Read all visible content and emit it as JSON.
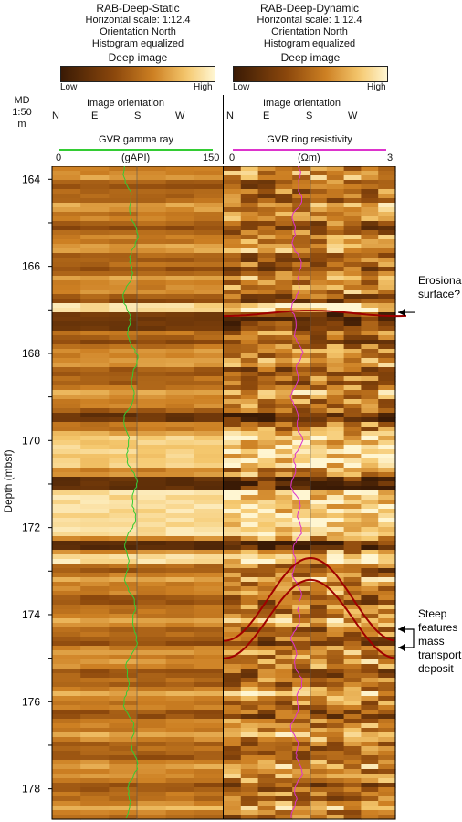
{
  "left_track": {
    "title": "RAB-Deep-Static",
    "scale": "Horizontal scale: 1:12.4",
    "orientation": "Orientation North",
    "processing": "Histogram equalized",
    "colorbar_title": "Deep image",
    "colorbar_low": "Low",
    "colorbar_high": "High",
    "orientation_header": "Image orientation",
    "compass": [
      "N",
      "E",
      "S",
      "W"
    ],
    "curve_name": "GVR gamma ray",
    "curve_unit": "(gAPI)",
    "curve_min": "0",
    "curve_max": "150",
    "curve_color": "#33cc33"
  },
  "right_track": {
    "title": "RAB-Deep-Dynamic",
    "scale": "Horizontal scale: 1:12.4",
    "orientation": "Orientation North",
    "processing": "Histogram equalized",
    "colorbar_title": "Deep image",
    "colorbar_low": "Low",
    "colorbar_high": "High",
    "orientation_header": "Image orientation",
    "compass": [
      "N",
      "E",
      "S",
      "W"
    ],
    "curve_name": "GVR ring resistivity",
    "curve_unit": "(Ωm)",
    "curve_min": "0",
    "curve_max": "3",
    "curve_color": "#dd33cc"
  },
  "depth_header": [
    "MD",
    "1:50",
    "m"
  ],
  "depth_axis": {
    "label": "Depth (mbsf)",
    "min": 163.7,
    "max": 178.7,
    "ticks": [
      164,
      166,
      168,
      170,
      172,
      174,
      176,
      178
    ]
  },
  "annotations": {
    "erosional_line1": "Erosional",
    "erosional_line2": "surface?",
    "steep_lines": [
      "Steep",
      "features",
      "mass",
      "transport",
      "deposit"
    ]
  },
  "colors": {
    "image_dark": "#3a1a05",
    "image_mid": "#b06a18",
    "image_light": "#fff3c8",
    "sinusoid": "#a00000"
  },
  "features": {
    "erosional_depth": 167.1,
    "steep_upper_depth_range": [
      172.7,
      174.6
    ],
    "steep_lower_depth_range": [
      173.2,
      175.0
    ]
  }
}
